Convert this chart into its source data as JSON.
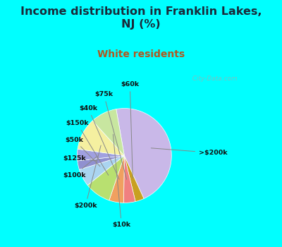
{
  "title": "Income distribution in Franklin Lakes,\nNJ (%)",
  "subtitle": "White residents",
  "title_color": "#1a2a3a",
  "subtitle_color": "#b05820",
  "fig_bg_color": "#00FFFF",
  "chart_bg_color": "#e8f5ee",
  "labels": [
    ">$200k",
    "$60k",
    "$75k",
    "$40k",
    "$150k",
    "$50k",
    "$125k",
    "$100k",
    "$200k",
    "$10k"
  ],
  "values": [
    46,
    3,
    4,
    5,
    9,
    6,
    3,
    4,
    11,
    9
  ],
  "colors": [
    "#c9b8e8",
    "#c8a020",
    "#f08080",
    "#f0a060",
    "#b8e070",
    "#aad4f0",
    "#9090d0",
    "#a0a0e0",
    "#f5f0a0",
    "#c8e6a0"
  ],
  "watermark": "  City-Data.com"
}
